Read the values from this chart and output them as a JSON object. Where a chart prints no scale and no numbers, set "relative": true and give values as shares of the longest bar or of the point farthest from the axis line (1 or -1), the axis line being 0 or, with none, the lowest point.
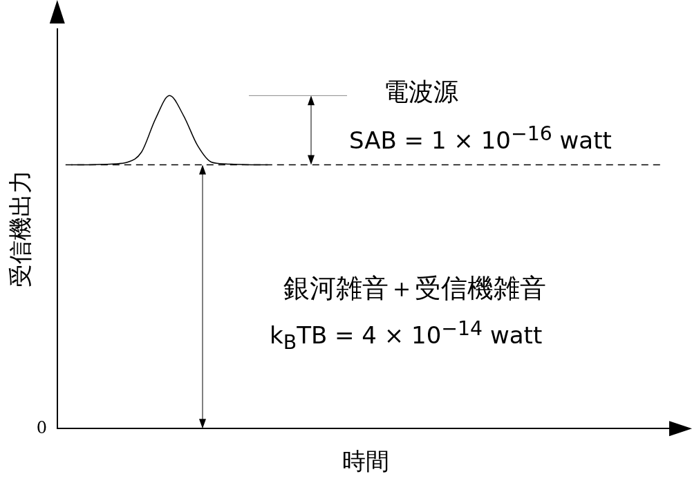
{
  "chart_data": {
    "type": "line",
    "relative": true,
    "xlabel": "時間",
    "ylabel": "受信機出力",
    "categories": [
      null,
      null,
      null,
      null,
      null,
      null,
      null,
      null,
      null,
      null,
      null,
      null,
      null,
      null,
      null,
      null,
      null,
      null,
      null,
      null,
      null,
      null,
      null,
      null,
      null,
      null,
      null,
      null,
      null,
      null,
      null,
      null,
      null,
      null,
      null,
      null,
      null,
      null,
      null,
      null,
      null,
      null,
      null,
      null,
      null
    ],
    "series": [
      {
        "color": "#000000",
        "values": [
          null,
          0.792,
          0.792,
          0.793,
          0.795,
          0.8,
          0.83,
          0.93,
          1.0,
          0.94,
          0.85,
          0.8,
          0.795,
          0.793,
          0.792,
          0.792,
          null,
          null,
          null,
          null,
          null,
          null,
          null,
          null,
          null,
          null,
          null,
          null,
          null,
          null,
          null,
          null,
          null,
          null,
          null,
          null,
          null,
          null,
          null,
          null,
          null,
          null,
          null,
          null,
          null
        ]
      }
    ],
    "ref_lines": [
      {
        "axis": "y",
        "value": 0.792,
        "line_style": "dashed",
        "color": "#000000"
      }
    ],
    "annotations": [
      "電波源",
      "SAB = 1 × 10$^{−16}$ watt",
      "銀河雑音＋受信機雑音",
      "k$_{B}$TB = 4 × 10$^{−14}$ watt",
      "0"
    ],
    "grid": false,
    "legend": false,
    "tick_labels": false,
    "marker": "none",
    "line_style": "solid"
  }
}
